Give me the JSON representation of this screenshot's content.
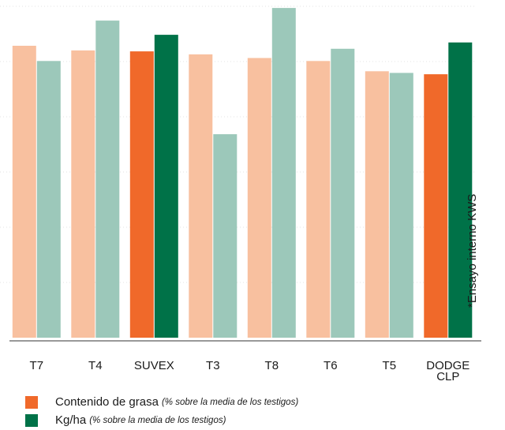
{
  "chart_data": {
    "type": "bar",
    "title": "",
    "xlabel": "",
    "ylabel": "",
    "categories": [
      "T7",
      "T4",
      "SUVEX",
      "T3",
      "T8",
      "T6",
      "T5",
      "DODGE\nCLP"
    ],
    "highlighted_categories": [
      "SUVEX",
      "DODGE\nCLP"
    ],
    "ylim": [
      0,
      100
    ],
    "grid": false,
    "legend_position": "bottom",
    "series": [
      {
        "name": "Contenido de grasa",
        "note": "(% sobre la media de los testigos)",
        "values": [
          88.1,
          86.7,
          86.4,
          85.5,
          84.4,
          83.5,
          80.4,
          79.5
        ],
        "color": "#f0692a",
        "muted_color": "#f8c09f"
      },
      {
        "name": "Kg/ha",
        "note": "(% sobre la media de los testigos)",
        "values": [
          83.5,
          95.7,
          91.4,
          61.4,
          99.5,
          87.2,
          79.9,
          89.1
        ],
        "color": "#007248",
        "muted_color": "#9cc8ba"
      }
    ]
  },
  "side_note": "*Ensayo interno KWS"
}
